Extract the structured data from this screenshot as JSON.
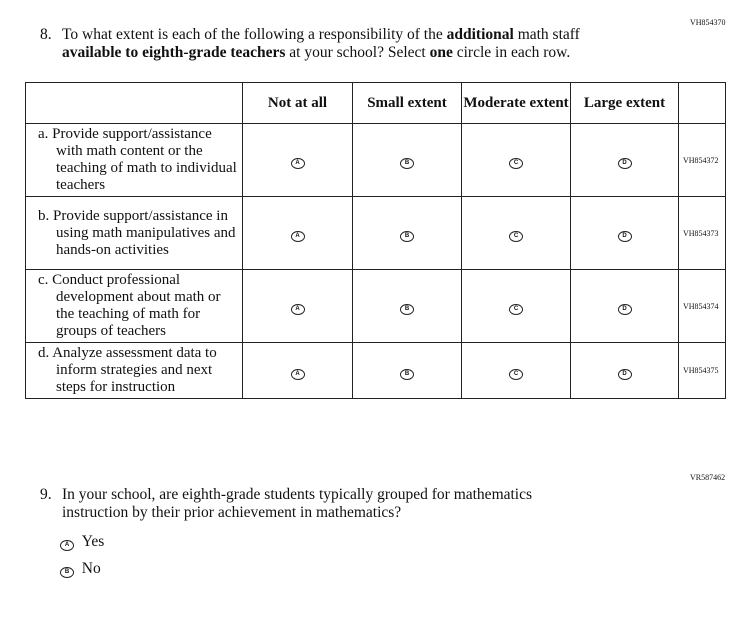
{
  "q8": {
    "id": "VH854370",
    "number": "8.",
    "text": [
      {
        "text": "To what extent is each of the following a responsibility of the "
      },
      {
        "text": "additional",
        "bold": true
      },
      {
        "text": " math staff "
      },
      {
        "text": "available to eighth-grade teachers",
        "bold": true
      },
      {
        "text": " at your school? Select "
      },
      {
        "text": "one",
        "bold": true
      },
      {
        "text": " circle in each row."
      }
    ]
  },
  "table": {
    "headers": [
      "Not at all",
      "Small extent",
      "Moderate extent",
      "Large extent"
    ],
    "options": [
      "A",
      "B",
      "C",
      "D"
    ],
    "rows": [
      {
        "letter": "a.",
        "text": "Provide support/assistance with math content or the teaching of math to individual teachers",
        "id": "VH854372"
      },
      {
        "letter": "b.",
        "text": "Provide support/assistance in using math manipulatives and hands-on activities",
        "id": "VH854373"
      },
      {
        "letter": "c.",
        "text": "Conduct professional development about math or the teaching of math for groups of teachers",
        "id": "VH854374"
      },
      {
        "letter": "d.",
        "text": "Analyze assessment data to inform strategies and next steps for instruction",
        "id": "VH854375"
      }
    ]
  },
  "q9": {
    "id": "VR587462",
    "number": "9.",
    "text": "In your school, are eighth-grade students typically grouped for mathematics instruction by their prior achievement in mathematics?",
    "options": [
      {
        "letter": "A",
        "label": "Yes"
      },
      {
        "letter": "B",
        "label": "No"
      }
    ]
  }
}
